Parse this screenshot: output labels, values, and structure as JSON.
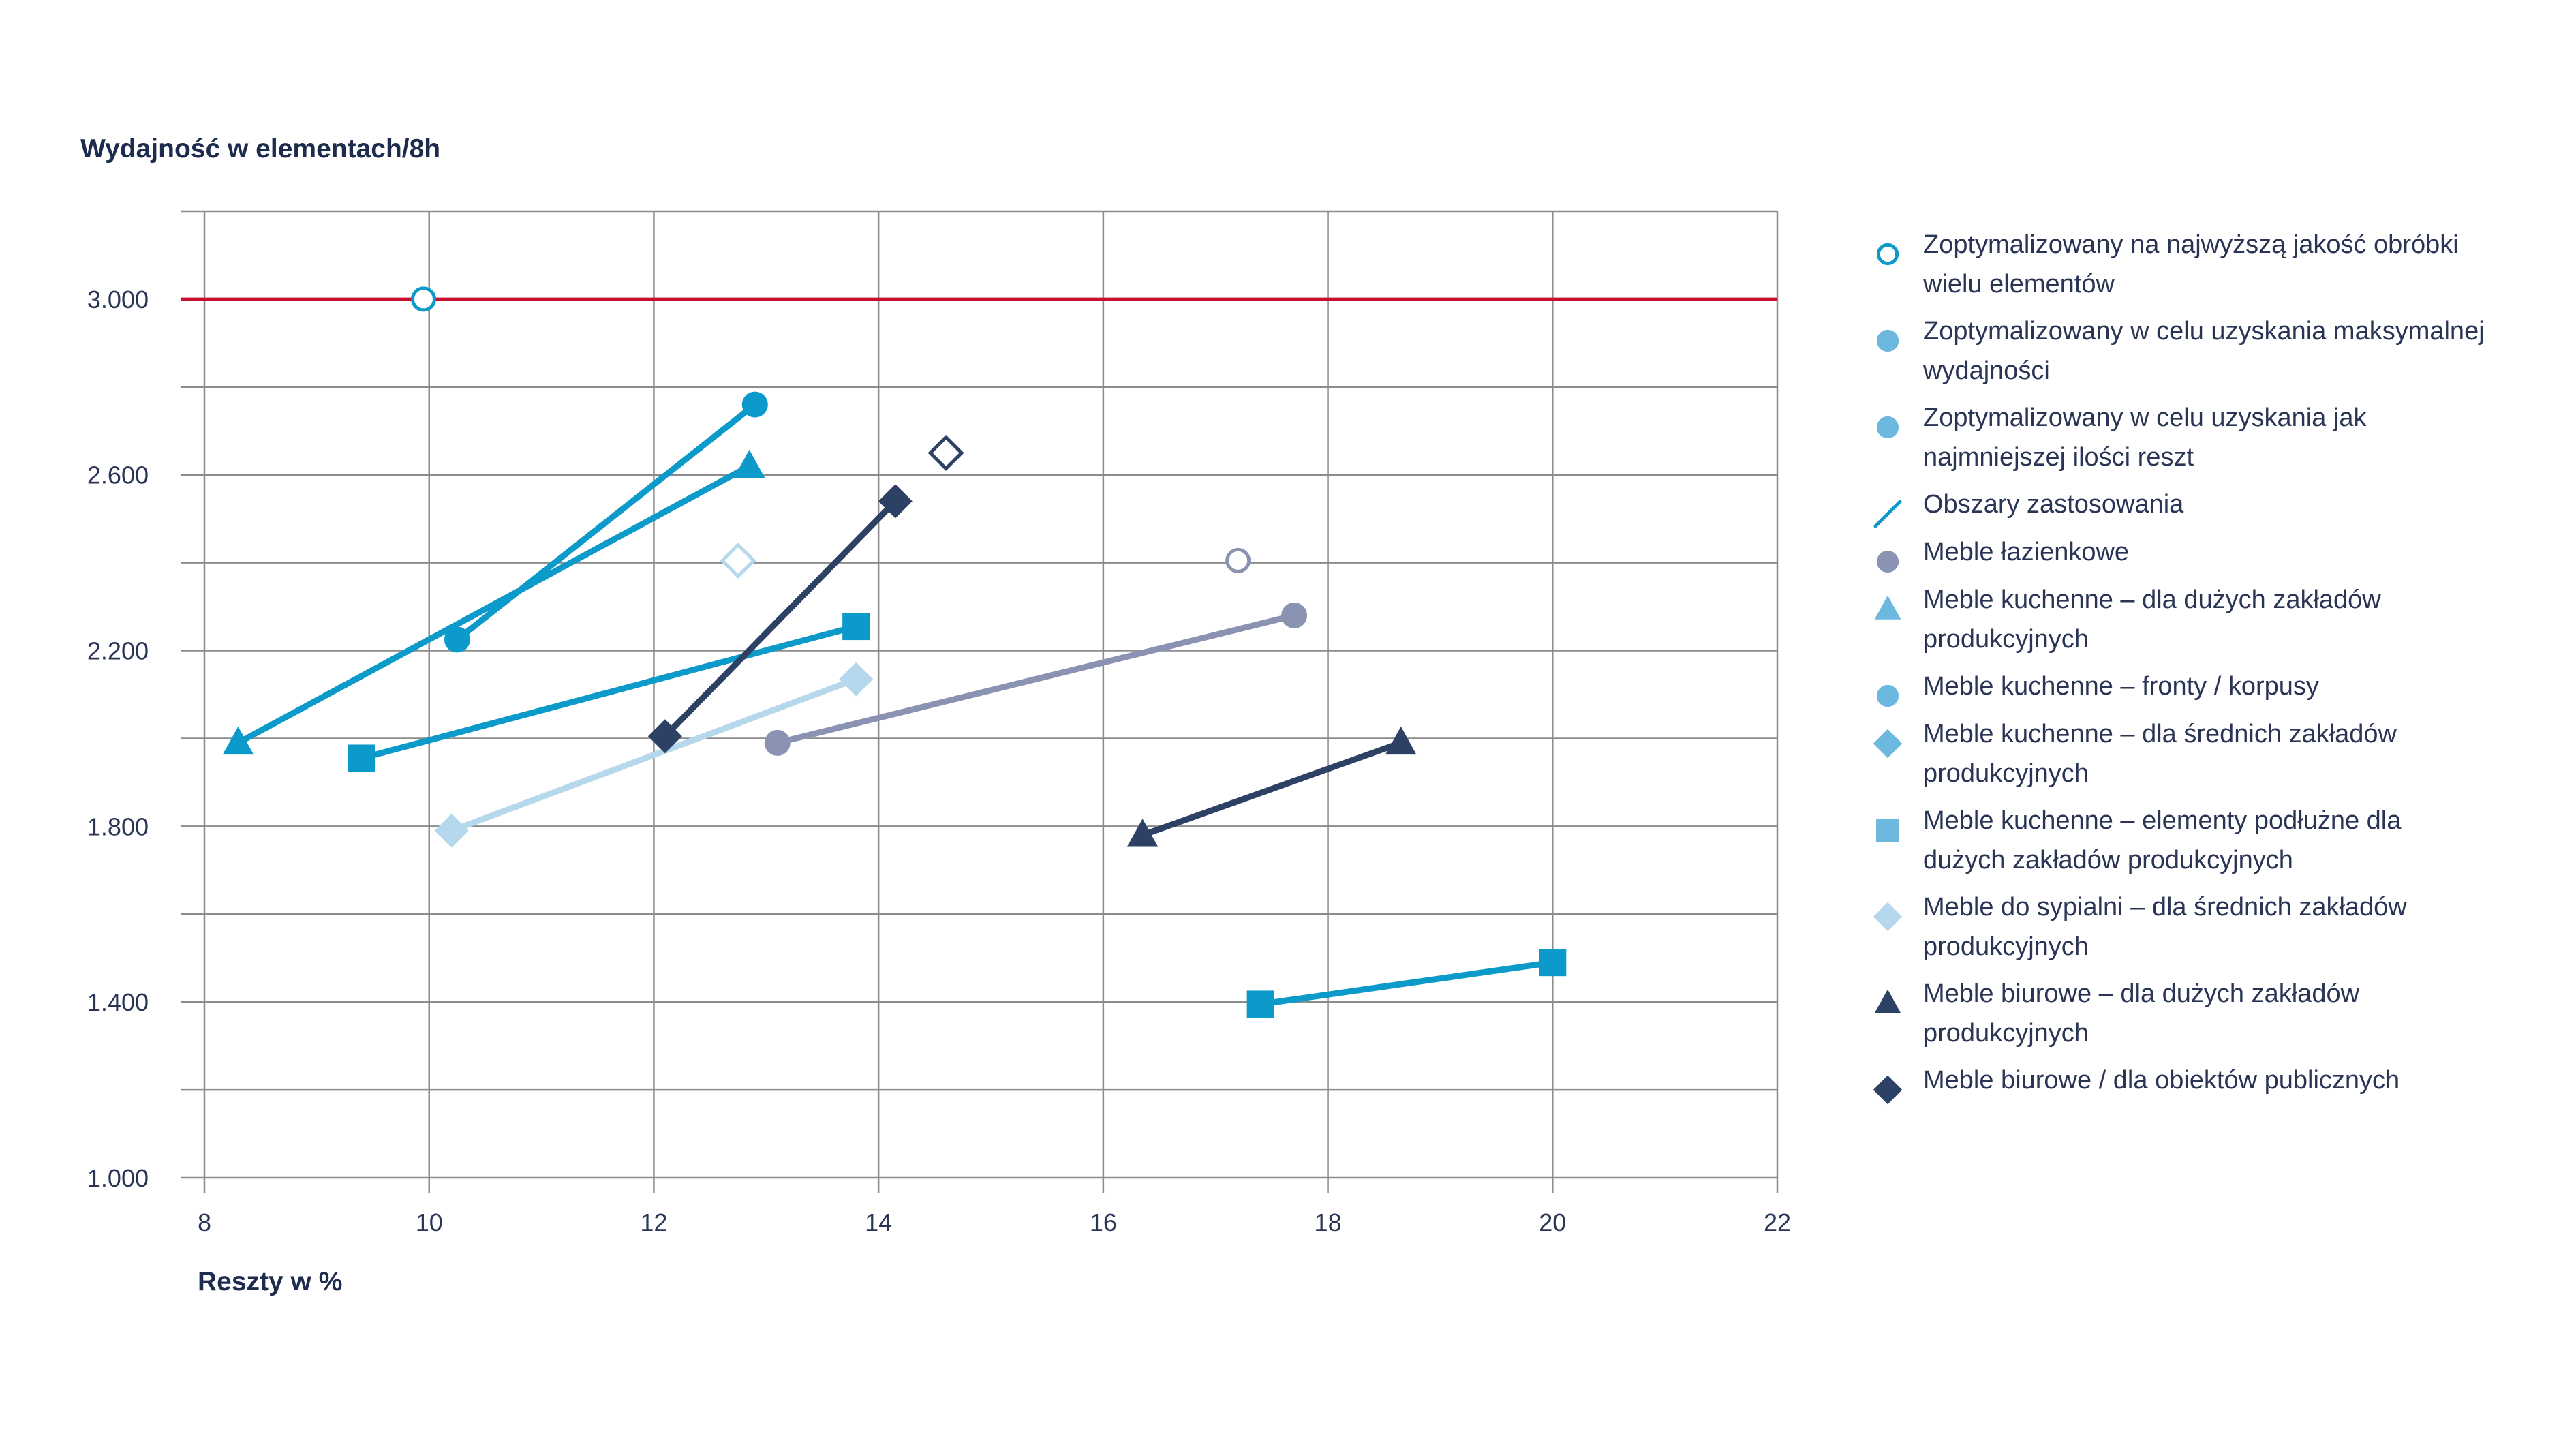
{
  "chart_data": {
    "type": "scatter",
    "title": "",
    "xlabel": "Reszty w %",
    "ylabel": "Wydajność w elementach/8h",
    "xlim": [
      8,
      22
    ],
    "ylim": [
      1000,
      3200
    ],
    "x_ticks": [
      8,
      10,
      12,
      14,
      16,
      18,
      20,
      22
    ],
    "x_tick_labels": [
      "8",
      "10",
      "12",
      "14",
      "16",
      "18",
      "20",
      "22"
    ],
    "y_ticks": [
      1000,
      1400,
      1800,
      2200,
      2600,
      3000
    ],
    "y_tick_labels": [
      "1.000",
      "1.400",
      "1.800",
      "2.200",
      "2.600",
      "3.000"
    ],
    "grid": true,
    "legend_position": "right",
    "reference_line": {
      "y": 3000,
      "color": "#c8102e"
    },
    "colors": {
      "blue": "#0b9ac9",
      "light_blue": "#6cb8de",
      "pale_blue": "#b6d8ec",
      "grey_blue": "#8a94b2",
      "navy": "#2d4165",
      "grid": "#8c8c8c"
    },
    "series": [
      {
        "name": "",
        "marker": "circle",
        "color": "#0b9ac9",
        "points": [
          [
            10.25,
            2225
          ],
          [
            12.9,
            2760
          ]
        ]
      },
      {
        "name": "",
        "marker": "triangle",
        "color": "#0b9ac9",
        "points": [
          [
            8.3,
            1990
          ],
          [
            12.85,
            2620
          ]
        ]
      },
      {
        "name": "",
        "marker": "square",
        "color": "#0b9ac9",
        "points": [
          [
            9.4,
            1955
          ],
          [
            13.8,
            2255
          ]
        ]
      },
      {
        "name": "",
        "marker": "square",
        "color": "#0b9ac9",
        "points": [
          [
            17.4,
            1395
          ],
          [
            20.0,
            1490
          ]
        ]
      },
      {
        "name": "",
        "marker": "diamond",
        "color": "#b6d8ec",
        "points": [
          [
            10.2,
            1790
          ],
          [
            13.8,
            2135
          ]
        ]
      },
      {
        "name": "",
        "marker": "circle",
        "color": "#8a94b2",
        "points": [
          [
            13.1,
            1990
          ],
          [
            17.7,
            2280
          ]
        ]
      },
      {
        "name": "",
        "marker": "diamond",
        "color": "#2d4165",
        "points": [
          [
            12.1,
            2005
          ],
          [
            14.15,
            2540
          ]
        ]
      },
      {
        "name": "",
        "marker": "triangle",
        "color": "#2d4165",
        "points": [
          [
            16.35,
            1780
          ],
          [
            18.65,
            1990
          ]
        ]
      }
    ],
    "optimized_points": [
      {
        "marker": "circle-open",
        "color": "#0b9ac9",
        "x": 9.95,
        "y": 3000
      },
      {
        "marker": "diamond-open",
        "color": "#b6d8ec",
        "x": 12.75,
        "y": 2405
      },
      {
        "marker": "diamond-open",
        "color": "#2d4165",
        "x": 14.6,
        "y": 2650
      },
      {
        "marker": "circle-open",
        "color": "#8a94b2",
        "x": 17.2,
        "y": 2405
      }
    ],
    "legend": [
      {
        "lines": [
          "Zoptymalizowany na najwyższą jakość obróbki",
          "wielu elementów"
        ],
        "symbol": "circle-open",
        "color": "#0b9ac9"
      },
      {
        "lines": [
          "Zoptymalizowany w celu uzyskania maksymalnej",
          "wydajności"
        ],
        "symbol": "circle",
        "color": "#6cb8de"
      },
      {
        "lines": [
          "Zoptymalizowany w celu uzyskania jak",
          "najmniejszej ilości reszt"
        ],
        "symbol": "circle",
        "color": "#6cb8de"
      },
      {
        "lines": [
          "Obszary zastosowania"
        ],
        "symbol": "slash",
        "color": "#0b9ac9"
      },
      {
        "lines": [
          "Meble łazienkowe"
        ],
        "symbol": "circle",
        "color": "#8a94b2"
      },
      {
        "lines": [
          "Meble kuchenne – dla dużych zakładów",
          "produkcyjnych"
        ],
        "symbol": "triangle",
        "color": "#6cb8de"
      },
      {
        "lines": [
          "Meble kuchenne – fronty / korpusy"
        ],
        "symbol": "circle",
        "color": "#6cb8de"
      },
      {
        "lines": [
          "Meble kuchenne – dla średnich zakładów",
          "produkcyjnych"
        ],
        "symbol": "diamond",
        "color": "#6cb8de"
      },
      {
        "lines": [
          "Meble kuchenne – elementy podłużne dla",
          "dużych zakładów produkcyjnych"
        ],
        "symbol": "square",
        "color": "#6cb8de"
      },
      {
        "lines": [
          "Meble do sypialni – dla średnich zakładów",
          "produkcyjnych"
        ],
        "symbol": "diamond",
        "color": "#b6d8ec"
      },
      {
        "lines": [
          "Meble biurowe – dla dużych zakładów",
          "produkcyjnych"
        ],
        "symbol": "triangle",
        "color": "#2d4165"
      },
      {
        "lines": [
          "Meble biurowe / dla obiektów publicznych"
        ],
        "symbol": "diamond",
        "color": "#2d4165"
      }
    ]
  }
}
